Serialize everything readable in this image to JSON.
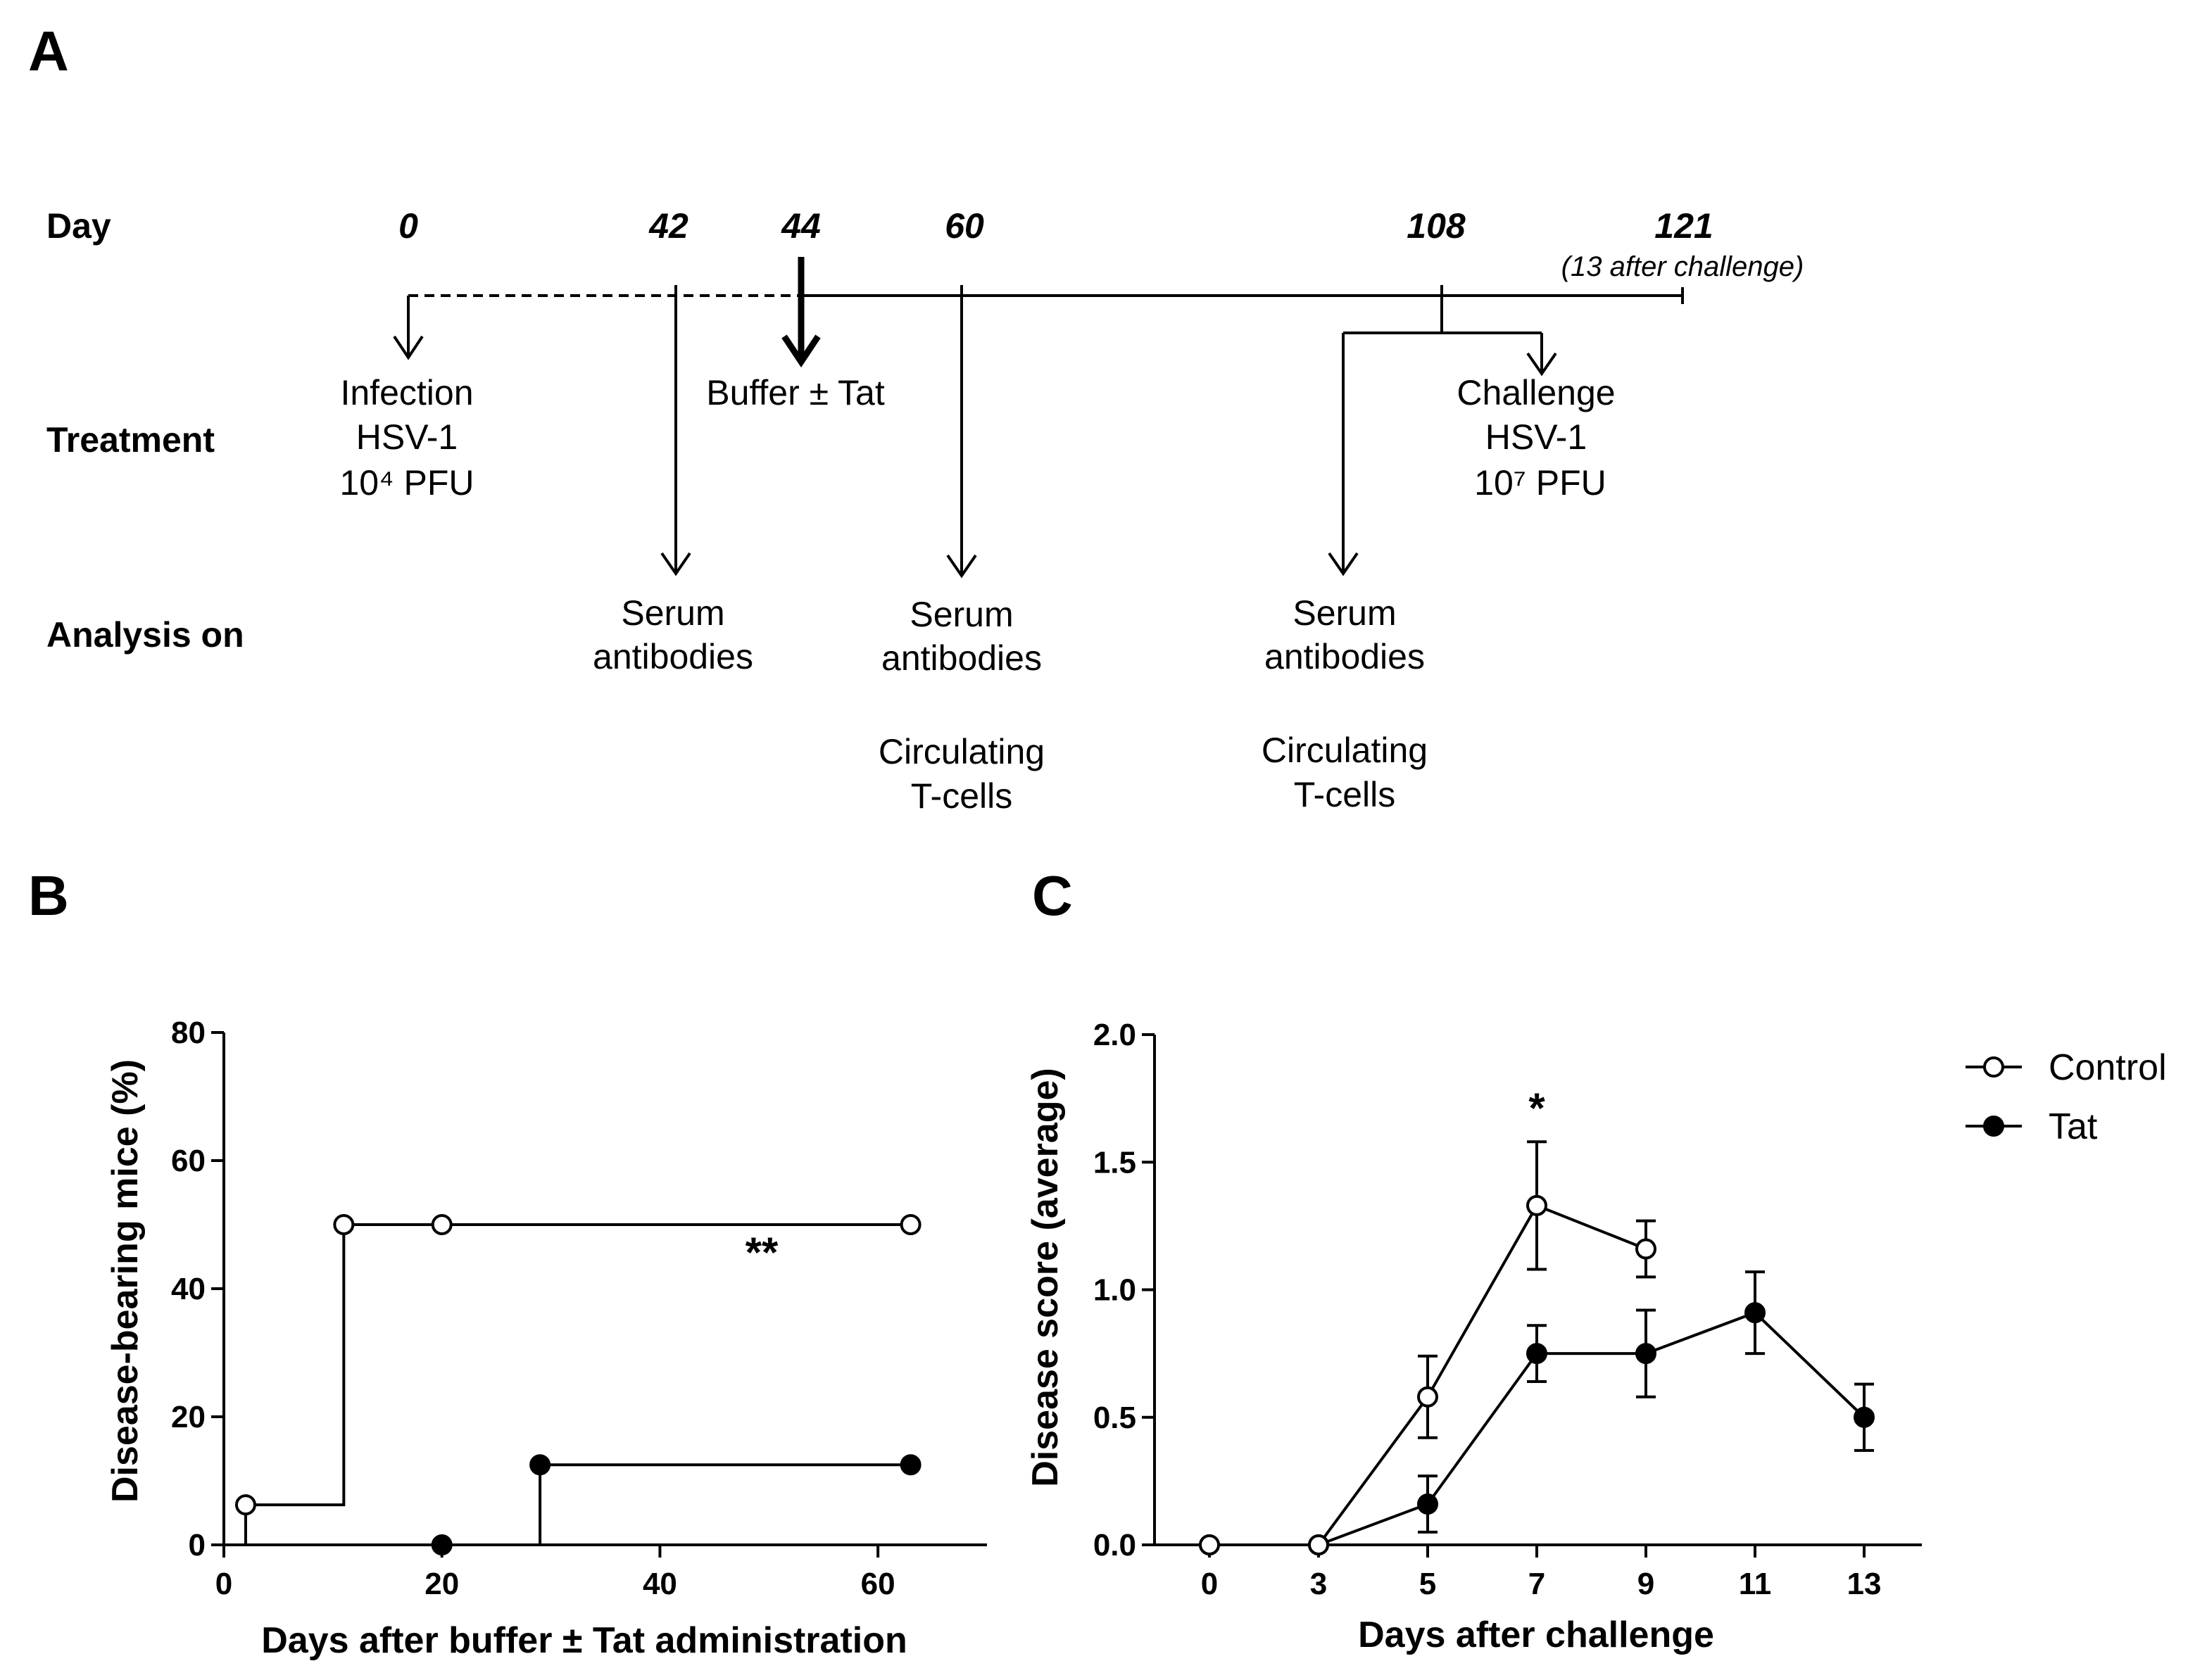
{
  "panels": {
    "a": "A",
    "b": "B",
    "c": "C"
  },
  "timeline": {
    "row_labels": {
      "day": "Day",
      "treatment": "Treatment",
      "analysis": "Analysis on"
    },
    "days": [
      "0",
      "42",
      "44",
      "60",
      "108",
      "121"
    ],
    "day_note": "(13 after challenge)",
    "treatments": {
      "infection": [
        "Infection",
        "HSV-1",
        "10⁴ PFU"
      ],
      "buffer": [
        "Buffer ± Tat"
      ],
      "challenge": [
        "Challenge",
        "HSV-1",
        "10⁷ PFU"
      ]
    },
    "analyses": {
      "day42": [
        "Serum",
        "antibodies"
      ],
      "day60": [
        "Serum",
        "antibodies",
        "Circulating",
        "T-cells"
      ],
      "day108": [
        "Serum",
        "antibodies",
        "Circulating",
        "T-cells"
      ]
    }
  },
  "chart_data": [
    {
      "id": "B",
      "type": "line",
      "subtype": "step",
      "title": "",
      "xlabel": "Days after buffer ± Tat administration",
      "ylabel": "Disease-bearing mice (%)",
      "xlim": [
        0,
        70
      ],
      "ylim": [
        0,
        80
      ],
      "xticks": [
        0,
        20,
        40,
        60
      ],
      "yticks": [
        0,
        20,
        40,
        60,
        80
      ],
      "annotation": "**",
      "series": [
        {
          "name": "Control",
          "marker": "open-circle",
          "steps": [
            [
              2,
              6.25
            ],
            [
              11,
              50
            ],
            [
              63,
              50
            ]
          ],
          "markers": [
            [
              2,
              6.25
            ],
            [
              11,
              50
            ],
            [
              20,
              50
            ],
            [
              63,
              50
            ]
          ]
        },
        {
          "name": "Tat",
          "marker": "filled-circle",
          "steps": [
            [
              29,
              12.5
            ],
            [
              63,
              12.5
            ]
          ],
          "markers": [
            [
              20,
              0
            ],
            [
              29,
              12.5
            ],
            [
              63,
              12.5
            ]
          ]
        }
      ]
    },
    {
      "id": "C",
      "type": "line",
      "title": "",
      "xlabel": "Days after challenge",
      "ylabel": "Disease score (average)",
      "categories": [
        "0",
        "3",
        "5",
        "7",
        "9",
        "11",
        "13"
      ],
      "x": [
        0,
        3,
        5,
        7,
        9,
        11,
        13
      ],
      "ylim": [
        0,
        2
      ],
      "yticks": [
        "0.0",
        "0.5",
        "1.0",
        "1.5",
        "2.0"
      ],
      "annotation": "*",
      "annotation_x": 7,
      "series": [
        {
          "name": "Control",
          "marker": "open-circle",
          "x": [
            0,
            3,
            5,
            7,
            9
          ],
          "values": [
            0,
            0,
            0.58,
            1.33,
            1.16
          ],
          "errors": [
            0,
            0,
            0.16,
            0.25,
            0.11
          ]
        },
        {
          "name": "Tat",
          "marker": "filled-circle",
          "x": [
            0,
            3,
            5,
            7,
            9,
            11,
            13
          ],
          "values": [
            0,
            0,
            0.16,
            0.75,
            0.75,
            0.91,
            0.5
          ],
          "errors": [
            0,
            0,
            0.11,
            0.11,
            0.17,
            0.16,
            0.13
          ]
        }
      ],
      "legend": {
        "position": "right",
        "entries": [
          "Control",
          "Tat"
        ]
      }
    }
  ]
}
